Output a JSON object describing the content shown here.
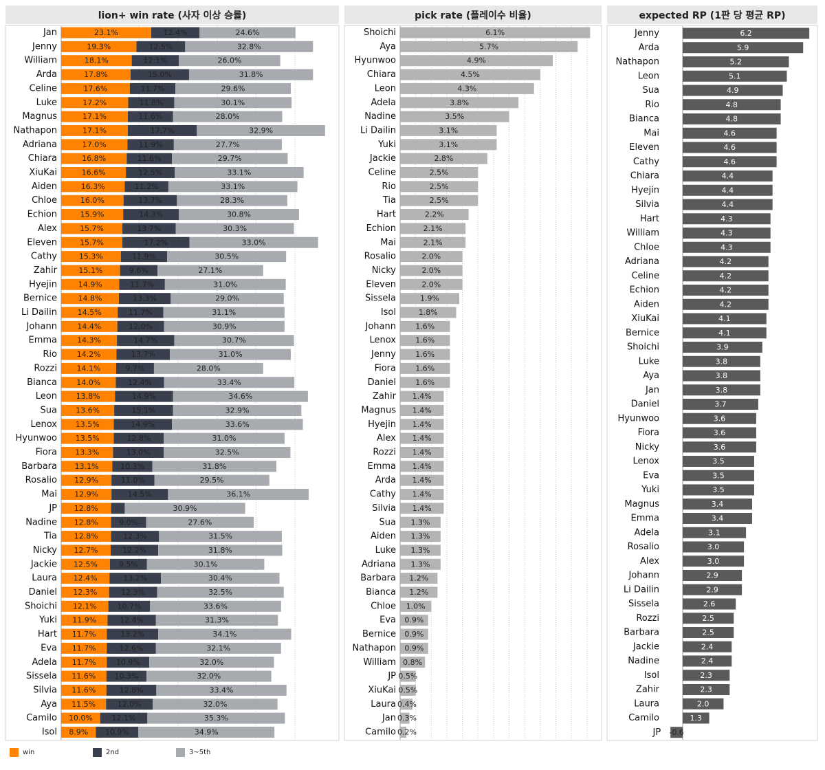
{
  "colors": {
    "win": "#ff8200",
    "second": "#3a3f4e",
    "third_fifth": "#a7aaae",
    "pick": "#b4b4b4",
    "rp": "#5a5a5a"
  },
  "legend": [
    {
      "label": "win",
      "color": "#ff8200"
    },
    {
      "label": "2nd",
      "color": "#3a3f4e"
    },
    {
      "label": "3~5th",
      "color": "#a7aaae"
    }
  ],
  "panels": {
    "win_rate": {
      "title": "lion+ win rate (사자 이상 승률)"
    },
    "pick_rate": {
      "title": "pick rate (플레이수 비율)"
    },
    "expected_rp": {
      "title": "expected RP (1판 당 평균 RP)"
    }
  },
  "chart_data": [
    {
      "type": "bar",
      "orientation": "horizontal",
      "stacked": true,
      "title": "lion+ win rate (사자 이상 승률)",
      "categories": [
        "Jan",
        "Jenny",
        "William",
        "Arda",
        "Celine",
        "Luke",
        "Magnus",
        "Nathapon",
        "Adriana",
        "Chiara",
        "XiuKai",
        "Aiden",
        "Chloe",
        "Echion",
        "Alex",
        "Eleven",
        "Cathy",
        "Zahir",
        "Hyejin",
        "Bernice",
        "Li Dailin",
        "Johann",
        "Emma",
        "Rio",
        "Rozzi",
        "Bianca",
        "Leon",
        "Sua",
        "Lenox",
        "Hyunwoo",
        "Fiora",
        "Barbara",
        "Rosalio",
        "Mai",
        "JP",
        "Nadine",
        "Tia",
        "Nicky",
        "Jackie",
        "Laura",
        "Daniel",
        "Shoichi",
        "Yuki",
        "Hart",
        "Eva",
        "Adela",
        "Sissela",
        "Silvia",
        "Aya",
        "Camilo",
        "Isol"
      ],
      "series": [
        {
          "name": "win",
          "labels": [
            "23.1%",
            "19.3%",
            "18.1%",
            "17.8%",
            "17.6%",
            "17.2%",
            "17.1%",
            "17.1%",
            "17.0%",
            "16.8%",
            "16.6%",
            "16.3%",
            "16.0%",
            "15.9%",
            "15.7%",
            "15.7%",
            "15.3%",
            "15.1%",
            "14.9%",
            "14.8%",
            "14.5%",
            "14.4%",
            "14.3%",
            "14.2%",
            "14.1%",
            "14.0%",
            "13.8%",
            "13.6%",
            "13.5%",
            "13.5%",
            "13.3%",
            "13.1%",
            "12.9%",
            "12.9%",
            "12.8%",
            "12.8%",
            "12.8%",
            "12.7%",
            "12.5%",
            "12.4%",
            "12.3%",
            "12.1%",
            "11.9%",
            "11.7%",
            "11.7%",
            "11.7%",
            "11.6%",
            "11.6%",
            "11.5%",
            "10.0%",
            "8.9%"
          ],
          "values": [
            23.1,
            19.3,
            18.1,
            17.8,
            17.6,
            17.2,
            17.1,
            17.1,
            17.0,
            16.8,
            16.6,
            16.3,
            16.0,
            15.9,
            15.7,
            15.7,
            15.3,
            15.1,
            14.9,
            14.8,
            14.5,
            14.4,
            14.3,
            14.2,
            14.1,
            14.0,
            13.8,
            13.6,
            13.5,
            13.5,
            13.3,
            13.1,
            12.9,
            12.9,
            12.8,
            12.8,
            12.8,
            12.7,
            12.5,
            12.4,
            12.3,
            12.1,
            11.9,
            11.7,
            11.7,
            11.7,
            11.6,
            11.6,
            11.5,
            10.0,
            8.9
          ]
        },
        {
          "name": "2nd",
          "labels": [
            "12.4%",
            "12.5%",
            "12.1%",
            "15.0%",
            "11.7%",
            "11.8%",
            "11.6%",
            "17.7%",
            "11.9%",
            "11.6%",
            "12.5%",
            "11.2%",
            "13.7%",
            "14.3%",
            "13.7%",
            "17.2%",
            "11.9%",
            "9.6%",
            "11.7%",
            "13.3%",
            "11.7%",
            "12.0%",
            "14.7%",
            "13.7%",
            "9.7%",
            "12.4%",
            "14.9%",
            "15.1%",
            "14.9%",
            "12.8%",
            "13.0%",
            "10.3%",
            "11.0%",
            "14.5%",
            "",
            "9.0%",
            "12.3%",
            "12.2%",
            "9.5%",
            "13.2%",
            "12.3%",
            "10.7%",
            "12.4%",
            "13.2%",
            "12.6%",
            "10.9%",
            "10.3%",
            "12.8%",
            "12.0%",
            "12.1%",
            "10.9%"
          ],
          "values": [
            12.4,
            12.5,
            12.1,
            15.0,
            11.7,
            11.8,
            11.6,
            17.7,
            11.9,
            11.6,
            12.5,
            11.2,
            13.7,
            14.3,
            13.7,
            17.2,
            11.9,
            9.6,
            11.7,
            13.3,
            11.7,
            12.0,
            14.7,
            13.7,
            9.7,
            12.4,
            14.9,
            15.1,
            14.9,
            12.8,
            13.0,
            10.3,
            11.0,
            14.5,
            3.5,
            9.0,
            12.3,
            12.2,
            9.5,
            13.2,
            12.3,
            10.7,
            12.4,
            13.2,
            12.6,
            10.9,
            10.3,
            12.8,
            12.0,
            12.1,
            10.9
          ]
        },
        {
          "name": "3~5th",
          "labels": [
            "24.6%",
            "32.8%",
            "26.0%",
            "31.8%",
            "29.6%",
            "30.1%",
            "28.0%",
            "32.9%",
            "27.7%",
            "29.7%",
            "33.1%",
            "33.1%",
            "28.3%",
            "30.8%",
            "30.3%",
            "33.0%",
            "30.5%",
            "27.1%",
            "31.0%",
            "29.0%",
            "31.1%",
            "30.9%",
            "30.7%",
            "31.0%",
            "28.0%",
            "33.4%",
            "34.6%",
            "32.9%",
            "33.6%",
            "31.0%",
            "32.5%",
            "31.8%",
            "29.5%",
            "36.1%",
            "30.9%",
            "27.6%",
            "31.5%",
            "31.8%",
            "30.1%",
            "30.4%",
            "32.5%",
            "33.6%",
            "31.3%",
            "34.1%",
            "32.1%",
            "32.0%",
            "32.0%",
            "33.4%",
            "32.0%",
            "35.3%",
            "34.9%"
          ],
          "values": [
            24.6,
            32.8,
            26.0,
            31.8,
            29.6,
            30.1,
            28.0,
            32.9,
            27.7,
            29.7,
            33.1,
            33.1,
            28.3,
            30.8,
            30.3,
            33.0,
            30.5,
            27.1,
            31.0,
            29.0,
            31.1,
            30.9,
            30.7,
            31.0,
            28.0,
            33.4,
            34.6,
            32.9,
            33.6,
            31.0,
            32.5,
            31.8,
            29.5,
            36.1,
            30.9,
            27.6,
            31.5,
            31.8,
            30.1,
            30.4,
            32.5,
            33.6,
            31.3,
            34.1,
            32.1,
            32.0,
            32.0,
            33.4,
            32.0,
            35.3,
            34.9
          ]
        }
      ],
      "xlim": [
        0,
        70
      ],
      "grid": true
    },
    {
      "type": "bar",
      "orientation": "horizontal",
      "title": "pick rate (플레이수 비율)",
      "categories": [
        "Shoichi",
        "Aya",
        "Hyunwoo",
        "Chiara",
        "Leon",
        "Adela",
        "Nadine",
        "Li Dailin",
        "Yuki",
        "Jackie",
        "Celine",
        "Rio",
        "Tia",
        "Hart",
        "Echion",
        "Mai",
        "Rosalio",
        "Nicky",
        "Eleven",
        "Sissela",
        "Isol",
        "Johann",
        "Lenox",
        "Jenny",
        "Fiora",
        "Daniel",
        "Zahir",
        "Magnus",
        "Hyejin",
        "Alex",
        "Rozzi",
        "Emma",
        "Arda",
        "Cathy",
        "Silvia",
        "Sua",
        "Aiden",
        "Luke",
        "Adriana",
        "Barbara",
        "Bianca",
        "Chloe",
        "Eva",
        "Bernice",
        "Nathapon",
        "William",
        "JP",
        "XiuKai",
        "Laura",
        "Jan",
        "Camilo"
      ],
      "values": [
        6.1,
        5.7,
        4.9,
        4.5,
        4.3,
        3.8,
        3.5,
        3.1,
        3.1,
        2.8,
        2.5,
        2.5,
        2.5,
        2.2,
        2.1,
        2.1,
        2.0,
        2.0,
        2.0,
        1.9,
        1.8,
        1.6,
        1.6,
        1.6,
        1.6,
        1.6,
        1.4,
        1.4,
        1.4,
        1.4,
        1.4,
        1.4,
        1.4,
        1.4,
        1.4,
        1.3,
        1.3,
        1.3,
        1.3,
        1.2,
        1.2,
        1.0,
        0.9,
        0.9,
        0.9,
        0.8,
        0.5,
        0.5,
        0.4,
        0.3,
        0.2
      ],
      "labels": [
        "6.1%",
        "5.7%",
        "4.9%",
        "4.5%",
        "4.3%",
        "3.8%",
        "3.5%",
        "3.1%",
        "3.1%",
        "2.8%",
        "2.5%",
        "2.5%",
        "2.5%",
        "2.2%",
        "2.1%",
        "2.1%",
        "2.0%",
        "2.0%",
        "2.0%",
        "1.9%",
        "1.8%",
        "1.6%",
        "1.6%",
        "1.6%",
        "1.6%",
        "1.6%",
        "1.4%",
        "1.4%",
        "1.4%",
        "1.4%",
        "1.4%",
        "1.4%",
        "1.4%",
        "1.4%",
        "1.4%",
        "1.3%",
        "1.3%",
        "1.3%",
        "1.3%",
        "1.2%",
        "1.2%",
        "1.0%",
        "0.9%",
        "0.9%",
        "0.9%",
        "0.8%",
        "0.5%",
        "0.5%",
        "0.4%",
        "0.3%",
        "0.2%"
      ],
      "xlim": [
        0,
        6.2
      ],
      "grid": true
    },
    {
      "type": "bar",
      "orientation": "horizontal",
      "title": "expected RP (1판 당 평균 RP)",
      "categories": [
        "Jenny",
        "Arda",
        "Nathapon",
        "Leon",
        "Sua",
        "Rio",
        "Bianca",
        "Mai",
        "Eleven",
        "Cathy",
        "Chiara",
        "Hyejin",
        "Silvia",
        "Hart",
        "William",
        "Chloe",
        "Adriana",
        "Celine",
        "Echion",
        "Aiden",
        "XiuKai",
        "Bernice",
        "Shoichi",
        "Luke",
        "Aya",
        "Jan",
        "Daniel",
        "Hyunwoo",
        "Fiora",
        "Nicky",
        "Lenox",
        "Eva",
        "Yuki",
        "Magnus",
        "Emma",
        "Adela",
        "Rosalio",
        "Alex",
        "Johann",
        "Li Dailin",
        "Sissela",
        "Rozzi",
        "Barbara",
        "Jackie",
        "Nadine",
        "Isol",
        "Zahir",
        "Laura",
        "Camilo",
        "JP"
      ],
      "values": [
        6.2,
        5.9,
        5.2,
        5.1,
        4.9,
        4.8,
        4.8,
        4.6,
        4.6,
        4.6,
        4.4,
        4.4,
        4.4,
        4.3,
        4.3,
        4.3,
        4.2,
        4.2,
        4.2,
        4.2,
        4.1,
        4.1,
        3.9,
        3.8,
        3.8,
        3.8,
        3.7,
        3.6,
        3.6,
        3.6,
        3.5,
        3.5,
        3.5,
        3.4,
        3.4,
        3.1,
        3.0,
        3.0,
        2.9,
        2.9,
        2.6,
        2.5,
        2.5,
        2.4,
        2.4,
        2.3,
        2.3,
        2.0,
        1.3,
        -0.6
      ],
      "labels": [
        "6.2",
        "5.9",
        "5.2",
        "5.1",
        "4.9",
        "4.8",
        "4.8",
        "4.6",
        "4.6",
        "4.6",
        "4.4",
        "4.4",
        "4.4",
        "4.3",
        "4.3",
        "4.3",
        "4.2",
        "4.2",
        "4.2",
        "4.2",
        "4.1",
        "4.1",
        "3.9",
        "3.8",
        "3.8",
        "3.8",
        "3.7",
        "3.6",
        "3.6",
        "3.6",
        "3.5",
        "3.5",
        "3.5",
        "3.4",
        "3.4",
        "3.1",
        "3.0",
        "3.0",
        "2.9",
        "2.9",
        "2.6",
        "2.5",
        "2.5",
        "2.4",
        "2.4",
        "2.3",
        "2.3",
        "2.0",
        "1.3",
        "-0.6"
      ],
      "xlim": [
        -0.7,
        6.3
      ],
      "grid": false
    }
  ]
}
